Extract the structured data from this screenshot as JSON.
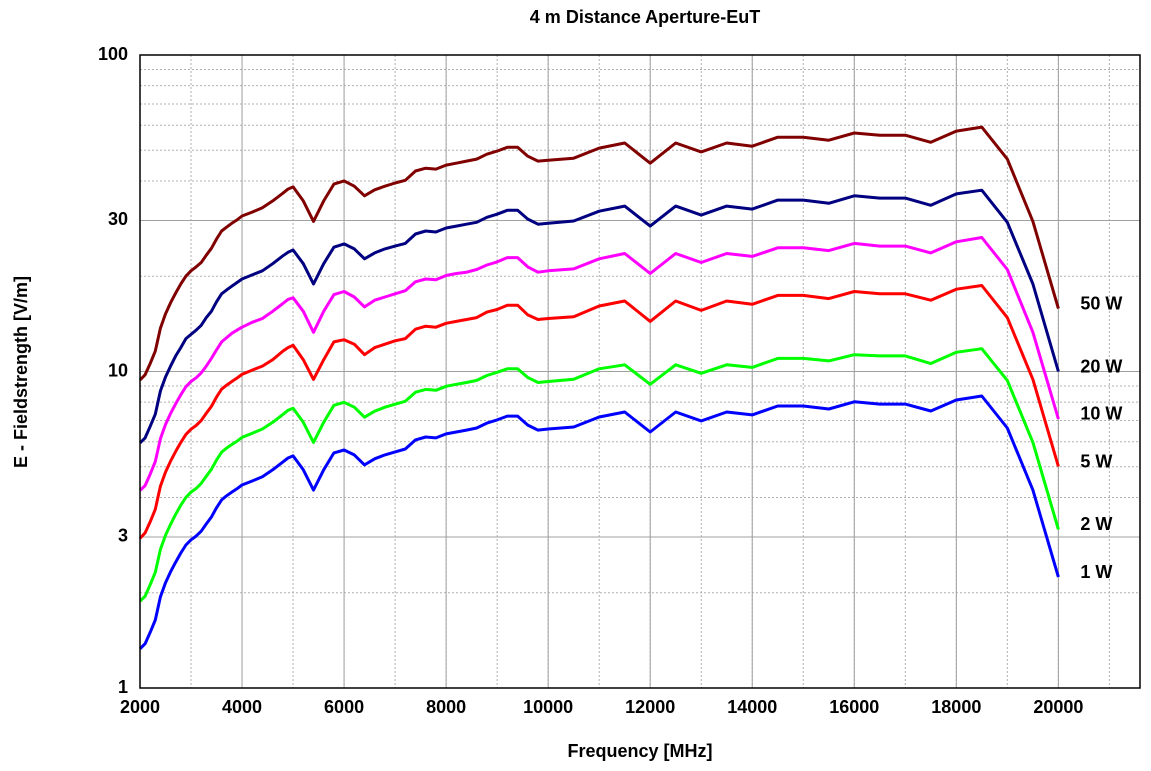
{
  "chart_data": {
    "type": "line",
    "title": "4 m Distance Aperture-EuT",
    "xlabel": "Frequency [MHz]",
    "ylabel": "E - Fieldstrength [V/m]",
    "x": [
      2000,
      2100,
      2200,
      2300,
      2400,
      2500,
      2600,
      2700,
      2800,
      2900,
      3000,
      3100,
      3200,
      3300,
      3400,
      3500,
      3600,
      3700,
      3800,
      3900,
      4000,
      4200,
      4400,
      4600,
      4800,
      4900,
      5000,
      5200,
      5400,
      5600,
      5800,
      6000,
      6200,
      6400,
      6600,
      6800,
      7000,
      7200,
      7400,
      7600,
      7800,
      8000,
      8200,
      8400,
      8600,
      8800,
      9000,
      9200,
      9400,
      9600,
      9800,
      10000,
      10500,
      11000,
      11500,
      12000,
      12500,
      13000,
      13500,
      14000,
      14500,
      15000,
      15500,
      16000,
      16500,
      17000,
      17500,
      18000,
      18500,
      19000,
      19500,
      20000
    ],
    "series": [
      {
        "name": "50 W",
        "color": "#800000",
        "values": [
          9.4,
          9.76,
          10.6,
          11.6,
          13.7,
          15.2,
          16.5,
          17.7,
          18.9,
          20.0,
          20.8,
          21.4,
          22.1,
          23.3,
          24.5,
          26.2,
          27.8,
          28.6,
          29.4,
          30.1,
          31.0,
          31.9,
          32.9,
          34.6,
          36.6,
          37.7,
          38.3,
          34.6,
          29.8,
          34.6,
          39.1,
          40.0,
          38.5,
          35.9,
          37.5,
          38.5,
          39.4,
          40.2,
          43.0,
          43.9,
          43.6,
          44.9,
          45.5,
          46.2,
          46.9,
          48.6,
          49.7,
          51.1,
          51.1,
          47.9,
          46.2,
          46.5,
          47.2,
          50.8,
          52.7,
          45.5,
          52.7,
          49.4,
          52.7,
          51.5,
          55.0,
          55.0,
          53.8,
          56.7,
          55.8,
          55.8,
          53.0,
          57.5,
          59.2,
          46.9,
          29.8,
          15.8
        ]
      },
      {
        "name": "20 W",
        "color": "#000080",
        "values": [
          5.95,
          6.17,
          6.71,
          7.33,
          8.68,
          9.61,
          10.4,
          11.2,
          11.9,
          12.7,
          13.1,
          13.5,
          14.0,
          14.8,
          15.5,
          16.6,
          17.6,
          18.1,
          18.6,
          19.1,
          19.6,
          20.2,
          20.8,
          21.9,
          23.2,
          23.8,
          24.2,
          21.9,
          18.9,
          21.9,
          24.7,
          25.3,
          24.4,
          22.7,
          23.7,
          24.4,
          24.9,
          25.4,
          27.2,
          27.8,
          27.6,
          28.4,
          28.8,
          29.2,
          29.6,
          30.7,
          31.4,
          32.3,
          32.3,
          30.3,
          29.2,
          29.4,
          29.9,
          32.1,
          33.3,
          28.8,
          33.3,
          31.2,
          33.3,
          32.6,
          34.8,
          34.8,
          34.0,
          35.9,
          35.3,
          35.3,
          33.5,
          36.4,
          37.4,
          29.6,
          18.9,
          10.0
        ]
      },
      {
        "name": "10 W",
        "color": "#ff00ff",
        "values": [
          4.21,
          4.36,
          4.74,
          5.19,
          6.13,
          6.8,
          7.37,
          7.91,
          8.44,
          8.95,
          9.3,
          9.55,
          9.9,
          10.4,
          11.0,
          11.7,
          12.4,
          12.8,
          13.2,
          13.5,
          13.8,
          14.3,
          14.7,
          15.5,
          16.4,
          16.9,
          17.1,
          15.5,
          13.3,
          15.5,
          17.5,
          17.9,
          17.2,
          16.0,
          16.8,
          17.2,
          17.6,
          18.0,
          19.2,
          19.6,
          19.5,
          20.1,
          20.4,
          20.6,
          21.0,
          21.7,
          22.2,
          22.9,
          22.9,
          21.4,
          20.6,
          20.8,
          21.1,
          22.7,
          23.6,
          20.4,
          23.6,
          22.1,
          23.6,
          23.1,
          24.6,
          24.6,
          24.1,
          25.4,
          24.9,
          24.9,
          23.7,
          25.7,
          26.5,
          21.0,
          13.3,
          7.08
        ]
      },
      {
        "name": "5 W",
        "color": "#ff0000",
        "values": [
          2.97,
          3.09,
          3.35,
          3.67,
          4.34,
          4.81,
          5.21,
          5.59,
          5.97,
          6.33,
          6.57,
          6.75,
          7.0,
          7.38,
          7.76,
          8.3,
          8.79,
          9.06,
          9.3,
          9.53,
          9.79,
          10.1,
          10.4,
          10.9,
          11.6,
          11.9,
          12.1,
          10.9,
          9.44,
          10.9,
          12.4,
          12.6,
          12.2,
          11.3,
          11.9,
          12.2,
          12.5,
          12.7,
          13.6,
          13.9,
          13.8,
          14.2,
          14.4,
          14.6,
          14.8,
          15.4,
          15.7,
          16.2,
          16.2,
          15.1,
          14.6,
          14.7,
          14.9,
          16.1,
          16.7,
          14.4,
          16.7,
          15.6,
          16.7,
          16.3,
          17.4,
          17.4,
          17.0,
          17.9,
          17.6,
          17.6,
          16.8,
          18.2,
          18.7,
          14.8,
          9.44,
          5.01
        ]
      },
      {
        "name": "2 W",
        "color": "#00ff00",
        "values": [
          1.88,
          1.95,
          2.12,
          2.32,
          2.74,
          3.04,
          3.29,
          3.54,
          3.78,
          4.0,
          4.16,
          4.27,
          4.43,
          4.67,
          4.91,
          5.25,
          5.56,
          5.73,
          5.88,
          6.02,
          6.19,
          6.38,
          6.58,
          6.91,
          7.32,
          7.54,
          7.65,
          6.91,
          5.97,
          6.91,
          7.82,
          7.99,
          7.71,
          7.17,
          7.49,
          7.71,
          7.88,
          8.05,
          8.6,
          8.78,
          8.72,
          8.98,
          9.11,
          9.23,
          9.37,
          9.71,
          9.94,
          10.2,
          10.2,
          9.57,
          9.23,
          9.3,
          9.45,
          10.2,
          10.5,
          9.11,
          10.5,
          9.87,
          10.5,
          10.3,
          11.0,
          11.0,
          10.8,
          11.3,
          11.2,
          11.2,
          10.6,
          11.5,
          11.8,
          9.37,
          5.97,
          3.17
        ]
      },
      {
        "name": "1 W",
        "color": "#0000ff",
        "values": [
          1.33,
          1.38,
          1.5,
          1.64,
          1.94,
          2.15,
          2.33,
          2.5,
          2.67,
          2.83,
          2.94,
          3.02,
          3.13,
          3.3,
          3.47,
          3.71,
          3.93,
          4.05,
          4.16,
          4.26,
          4.38,
          4.51,
          4.65,
          4.89,
          5.18,
          5.33,
          5.41,
          4.89,
          4.22,
          4.89,
          5.53,
          5.65,
          5.45,
          5.07,
          5.3,
          5.45,
          5.57,
          5.69,
          6.08,
          6.21,
          6.17,
          6.35,
          6.44,
          6.53,
          6.63,
          6.87,
          7.03,
          7.23,
          7.23,
          6.77,
          6.53,
          6.58,
          6.68,
          7.18,
          7.45,
          6.44,
          7.45,
          6.98,
          7.45,
          7.29,
          7.78,
          7.78,
          7.61,
          8.02,
          7.89,
          7.89,
          7.5,
          8.13,
          8.37,
          6.63,
          4.22,
          2.24
        ]
      }
    ],
    "xlim": [
      2000,
      21600
    ],
    "xticks": [
      2000,
      4000,
      6000,
      8000,
      10000,
      12000,
      14000,
      16000,
      18000,
      20000
    ],
    "ylim": [
      1,
      100
    ],
    "yticks": [
      1,
      3,
      10,
      30,
      100
    ],
    "ylog": true,
    "grid": true,
    "minor_grid": true
  }
}
